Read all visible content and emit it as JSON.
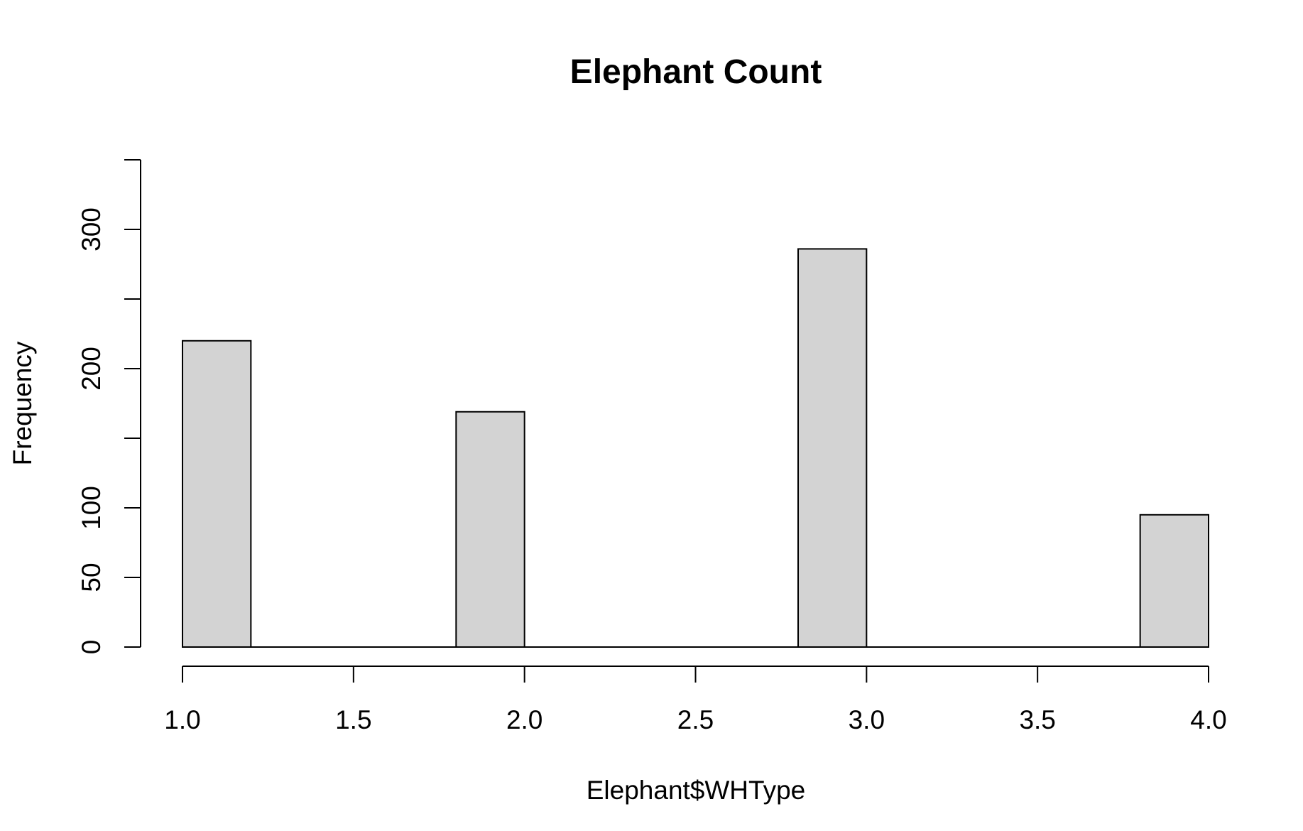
{
  "chart_data": {
    "type": "bar",
    "title": "Elephant Count",
    "xlabel": "Elephant$WHType",
    "ylabel": "Frequency",
    "bins": [
      {
        "x0": 1.0,
        "x1": 1.2,
        "value": 220
      },
      {
        "x0": 1.2,
        "x1": 1.4,
        "value": 0
      },
      {
        "x0": 1.4,
        "x1": 1.6,
        "value": 0
      },
      {
        "x0": 1.6,
        "x1": 1.8,
        "value": 0
      },
      {
        "x0": 1.8,
        "x1": 2.0,
        "value": 169
      },
      {
        "x0": 2.0,
        "x1": 2.2,
        "value": 0
      },
      {
        "x0": 2.2,
        "x1": 2.4,
        "value": 0
      },
      {
        "x0": 2.4,
        "x1": 2.6,
        "value": 0
      },
      {
        "x0": 2.6,
        "x1": 2.8,
        "value": 0
      },
      {
        "x0": 2.8,
        "x1": 3.0,
        "value": 286
      },
      {
        "x0": 3.0,
        "x1": 3.2,
        "value": 0
      },
      {
        "x0": 3.2,
        "x1": 3.4,
        "value": 0
      },
      {
        "x0": 3.4,
        "x1": 3.6,
        "value": 0
      },
      {
        "x0": 3.6,
        "x1": 3.8,
        "value": 0
      },
      {
        "x0": 3.8,
        "x1": 4.0,
        "value": 95
      }
    ],
    "xlim": [
      1.0,
      4.0
    ],
    "ylim": [
      0,
      350
    ],
    "x_ticks": [
      1.0,
      1.5,
      2.0,
      2.5,
      3.0,
      3.5,
      4.0
    ],
    "x_tick_labels": [
      "1.0",
      "1.5",
      "2.0",
      "2.5",
      "3.0",
      "3.5",
      "4.0"
    ],
    "y_ticks": [
      0,
      50,
      100,
      150,
      200,
      250,
      300,
      350
    ],
    "y_tick_labels": [
      "0",
      "50",
      "100",
      "",
      "200",
      "",
      "300",
      ""
    ],
    "bar_fill": "#d3d3d3",
    "bar_stroke": "#000000",
    "grid": false,
    "legend": "none"
  }
}
